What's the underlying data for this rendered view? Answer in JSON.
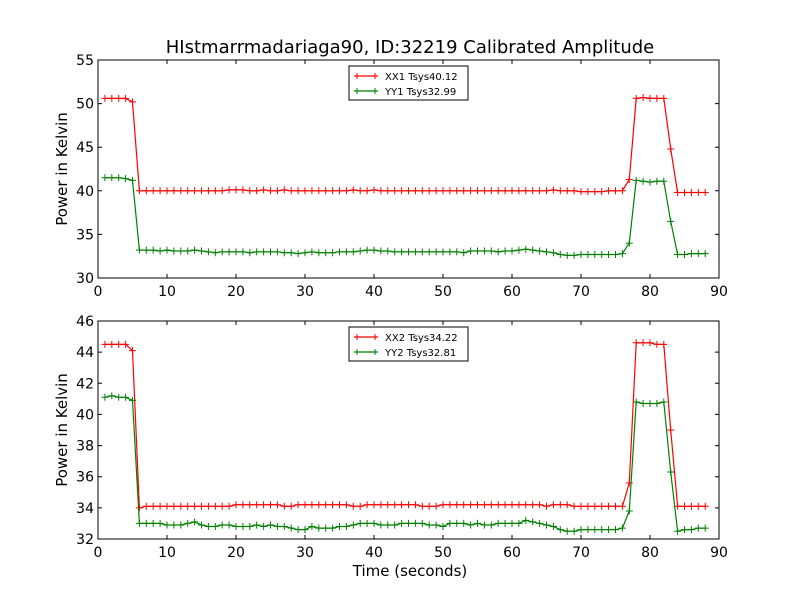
{
  "figure": {
    "title": "HIstmarrmadariaga90, ID:32219 Calibrated Amplitude",
    "xlabel": "Time (seconds)"
  },
  "colors": {
    "xx": "#ff0000",
    "yy": "#008000"
  },
  "chart_data": [
    {
      "type": "line",
      "title": "HIstmarrmadariaga90, ID:32219 Calibrated Amplitude",
      "xlabel": "",
      "ylabel": "Power in Kelvin",
      "xlim": [
        0,
        90
      ],
      "ylim": [
        30,
        55
      ],
      "xticks": [
        0,
        10,
        20,
        30,
        40,
        50,
        60,
        70,
        80,
        90
      ],
      "yticks": [
        30,
        35,
        40,
        45,
        50,
        55
      ],
      "grid": false,
      "legend_position": "top-center",
      "series": [
        {
          "name": "XX1 Tsys40.12",
          "color": "#ff0000",
          "x": [
            1,
            2,
            3,
            4,
            5,
            6,
            7,
            8,
            9,
            10,
            11,
            12,
            13,
            14,
            15,
            16,
            17,
            18,
            19,
            20,
            21,
            22,
            23,
            24,
            25,
            26,
            27,
            28,
            29,
            30,
            31,
            32,
            33,
            34,
            35,
            36,
            37,
            38,
            39,
            40,
            41,
            42,
            43,
            44,
            45,
            46,
            47,
            48,
            49,
            50,
            51,
            52,
            53,
            54,
            55,
            56,
            57,
            58,
            59,
            60,
            61,
            62,
            63,
            64,
            65,
            66,
            67,
            68,
            69,
            70,
            71,
            72,
            73,
            74,
            75,
            76,
            77,
            78,
            79,
            80,
            81,
            82,
            83,
            84,
            85,
            86,
            87,
            88
          ],
          "y": [
            50.6,
            50.6,
            50.6,
            50.6,
            50.2,
            40.0,
            40.0,
            40.0,
            40.0,
            40.0,
            40.0,
            40.0,
            40.0,
            40.0,
            40.0,
            40.0,
            40.0,
            40.0,
            40.1,
            40.1,
            40.1,
            40.0,
            40.0,
            40.1,
            40.0,
            40.0,
            40.1,
            40.0,
            40.0,
            40.0,
            40.0,
            40.0,
            40.0,
            40.0,
            40.0,
            40.0,
            40.1,
            40.0,
            40.0,
            40.1,
            40.0,
            40.0,
            40.0,
            40.0,
            40.0,
            40.0,
            40.0,
            40.0,
            40.0,
            40.0,
            40.0,
            40.0,
            40.0,
            40.0,
            40.0,
            40.0,
            40.0,
            40.0,
            40.0,
            40.0,
            40.0,
            40.0,
            40.0,
            40.0,
            40.0,
            40.1,
            40.0,
            40.0,
            40.0,
            39.9,
            39.9,
            39.9,
            39.9,
            40.0,
            40.0,
            40.0,
            41.3,
            50.6,
            50.7,
            50.6,
            50.6,
            50.6,
            44.8,
            39.8,
            39.8,
            39.8,
            39.8,
            39.8
          ]
        },
        {
          "name": "YY1 Tsys32.99",
          "color": "#008000",
          "x": [
            1,
            2,
            3,
            4,
            5,
            6,
            7,
            8,
            9,
            10,
            11,
            12,
            13,
            14,
            15,
            16,
            17,
            18,
            19,
            20,
            21,
            22,
            23,
            24,
            25,
            26,
            27,
            28,
            29,
            30,
            31,
            32,
            33,
            34,
            35,
            36,
            37,
            38,
            39,
            40,
            41,
            42,
            43,
            44,
            45,
            46,
            47,
            48,
            49,
            50,
            51,
            52,
            53,
            54,
            55,
            56,
            57,
            58,
            59,
            60,
            61,
            62,
            63,
            64,
            65,
            66,
            67,
            68,
            69,
            70,
            71,
            72,
            73,
            74,
            75,
            76,
            77,
            78,
            79,
            80,
            81,
            82,
            83,
            84,
            85,
            86,
            87,
            88
          ],
          "y": [
            41.5,
            41.5,
            41.5,
            41.4,
            41.2,
            33.2,
            33.2,
            33.2,
            33.1,
            33.2,
            33.1,
            33.1,
            33.1,
            33.2,
            33.1,
            33.0,
            32.9,
            33.0,
            33.0,
            33.0,
            33.0,
            32.9,
            33.0,
            33.0,
            33.0,
            33.0,
            32.9,
            32.9,
            32.8,
            32.9,
            33.0,
            32.9,
            32.9,
            32.9,
            33.0,
            33.0,
            33.0,
            33.1,
            33.2,
            33.2,
            33.1,
            33.1,
            33.0,
            33.0,
            33.0,
            33.0,
            33.0,
            33.0,
            33.0,
            33.0,
            33.0,
            33.0,
            32.9,
            33.1,
            33.1,
            33.1,
            33.1,
            33.0,
            33.1,
            33.1,
            33.2,
            33.3,
            33.2,
            33.1,
            33.0,
            32.9,
            32.7,
            32.6,
            32.6,
            32.7,
            32.7,
            32.7,
            32.7,
            32.7,
            32.7,
            32.8,
            34.0,
            41.2,
            41.1,
            41.0,
            41.1,
            41.1,
            36.5,
            32.7,
            32.7,
            32.8,
            32.8,
            32.8
          ]
        }
      ]
    },
    {
      "type": "line",
      "title": "",
      "xlabel": "Time (seconds)",
      "ylabel": "Power in Kelvin",
      "xlim": [
        0,
        90
      ],
      "ylim": [
        32,
        46
      ],
      "xticks": [
        0,
        10,
        20,
        30,
        40,
        50,
        60,
        70,
        80,
        90
      ],
      "yticks": [
        32,
        34,
        36,
        38,
        40,
        42,
        44,
        46
      ],
      "grid": false,
      "legend_position": "top-center",
      "series": [
        {
          "name": "XX2 Tsys34.22",
          "color": "#ff0000",
          "x": [
            1,
            2,
            3,
            4,
            5,
            6,
            7,
            8,
            9,
            10,
            11,
            12,
            13,
            14,
            15,
            16,
            17,
            18,
            19,
            20,
            21,
            22,
            23,
            24,
            25,
            26,
            27,
            28,
            29,
            30,
            31,
            32,
            33,
            34,
            35,
            36,
            37,
            38,
            39,
            40,
            41,
            42,
            43,
            44,
            45,
            46,
            47,
            48,
            49,
            50,
            51,
            52,
            53,
            54,
            55,
            56,
            57,
            58,
            59,
            60,
            61,
            62,
            63,
            64,
            65,
            66,
            67,
            68,
            69,
            70,
            71,
            72,
            73,
            74,
            75,
            76,
            77,
            78,
            79,
            80,
            81,
            82,
            83,
            84,
            85,
            86,
            87,
            88
          ],
          "y": [
            44.5,
            44.5,
            44.5,
            44.5,
            44.1,
            34.0,
            34.1,
            34.1,
            34.1,
            34.1,
            34.1,
            34.1,
            34.1,
            34.1,
            34.1,
            34.1,
            34.1,
            34.1,
            34.1,
            34.2,
            34.2,
            34.2,
            34.2,
            34.2,
            34.2,
            34.2,
            34.1,
            34.1,
            34.2,
            34.2,
            34.2,
            34.2,
            34.2,
            34.2,
            34.2,
            34.2,
            34.1,
            34.1,
            34.2,
            34.2,
            34.2,
            34.2,
            34.2,
            34.2,
            34.2,
            34.2,
            34.1,
            34.1,
            34.1,
            34.2,
            34.2,
            34.2,
            34.2,
            34.2,
            34.2,
            34.2,
            34.2,
            34.2,
            34.2,
            34.2,
            34.2,
            34.2,
            34.2,
            34.2,
            34.1,
            34.2,
            34.2,
            34.2,
            34.1,
            34.1,
            34.1,
            34.1,
            34.1,
            34.1,
            34.1,
            34.1,
            35.6,
            44.6,
            44.6,
            44.6,
            44.5,
            44.5,
            39.0,
            34.1,
            34.1,
            34.1,
            34.1,
            34.1
          ]
        },
        {
          "name": "YY2 Tsys32.81",
          "color": "#008000",
          "x": [
            1,
            2,
            3,
            4,
            5,
            6,
            7,
            8,
            9,
            10,
            11,
            12,
            13,
            14,
            15,
            16,
            17,
            18,
            19,
            20,
            21,
            22,
            23,
            24,
            25,
            26,
            27,
            28,
            29,
            30,
            31,
            32,
            33,
            34,
            35,
            36,
            37,
            38,
            39,
            40,
            41,
            42,
            43,
            44,
            45,
            46,
            47,
            48,
            49,
            50,
            51,
            52,
            53,
            54,
            55,
            56,
            57,
            58,
            59,
            60,
            61,
            62,
            63,
            64,
            65,
            66,
            67,
            68,
            69,
            70,
            71,
            72,
            73,
            74,
            75,
            76,
            77,
            78,
            79,
            80,
            81,
            82,
            83,
            84,
            85,
            86,
            87,
            88
          ],
          "y": [
            41.1,
            41.2,
            41.1,
            41.1,
            40.9,
            33.0,
            33.0,
            33.0,
            33.0,
            32.9,
            32.9,
            32.9,
            33.0,
            33.1,
            32.9,
            32.8,
            32.8,
            32.9,
            32.9,
            32.8,
            32.8,
            32.8,
            32.9,
            32.8,
            32.9,
            32.8,
            32.8,
            32.7,
            32.6,
            32.6,
            32.8,
            32.7,
            32.7,
            32.7,
            32.8,
            32.8,
            32.9,
            33.0,
            33.0,
            33.0,
            32.9,
            32.9,
            32.9,
            33.0,
            33.0,
            33.0,
            33.0,
            32.9,
            32.9,
            32.8,
            33.0,
            33.0,
            33.0,
            32.9,
            33.0,
            32.9,
            32.9,
            33.0,
            33.0,
            33.0,
            33.0,
            33.2,
            33.1,
            33.0,
            32.9,
            32.8,
            32.6,
            32.5,
            32.5,
            32.6,
            32.6,
            32.6,
            32.6,
            32.6,
            32.6,
            32.7,
            33.8,
            40.8,
            40.7,
            40.7,
            40.7,
            40.8,
            36.3,
            32.5,
            32.6,
            32.6,
            32.7,
            32.7
          ]
        }
      ]
    }
  ]
}
